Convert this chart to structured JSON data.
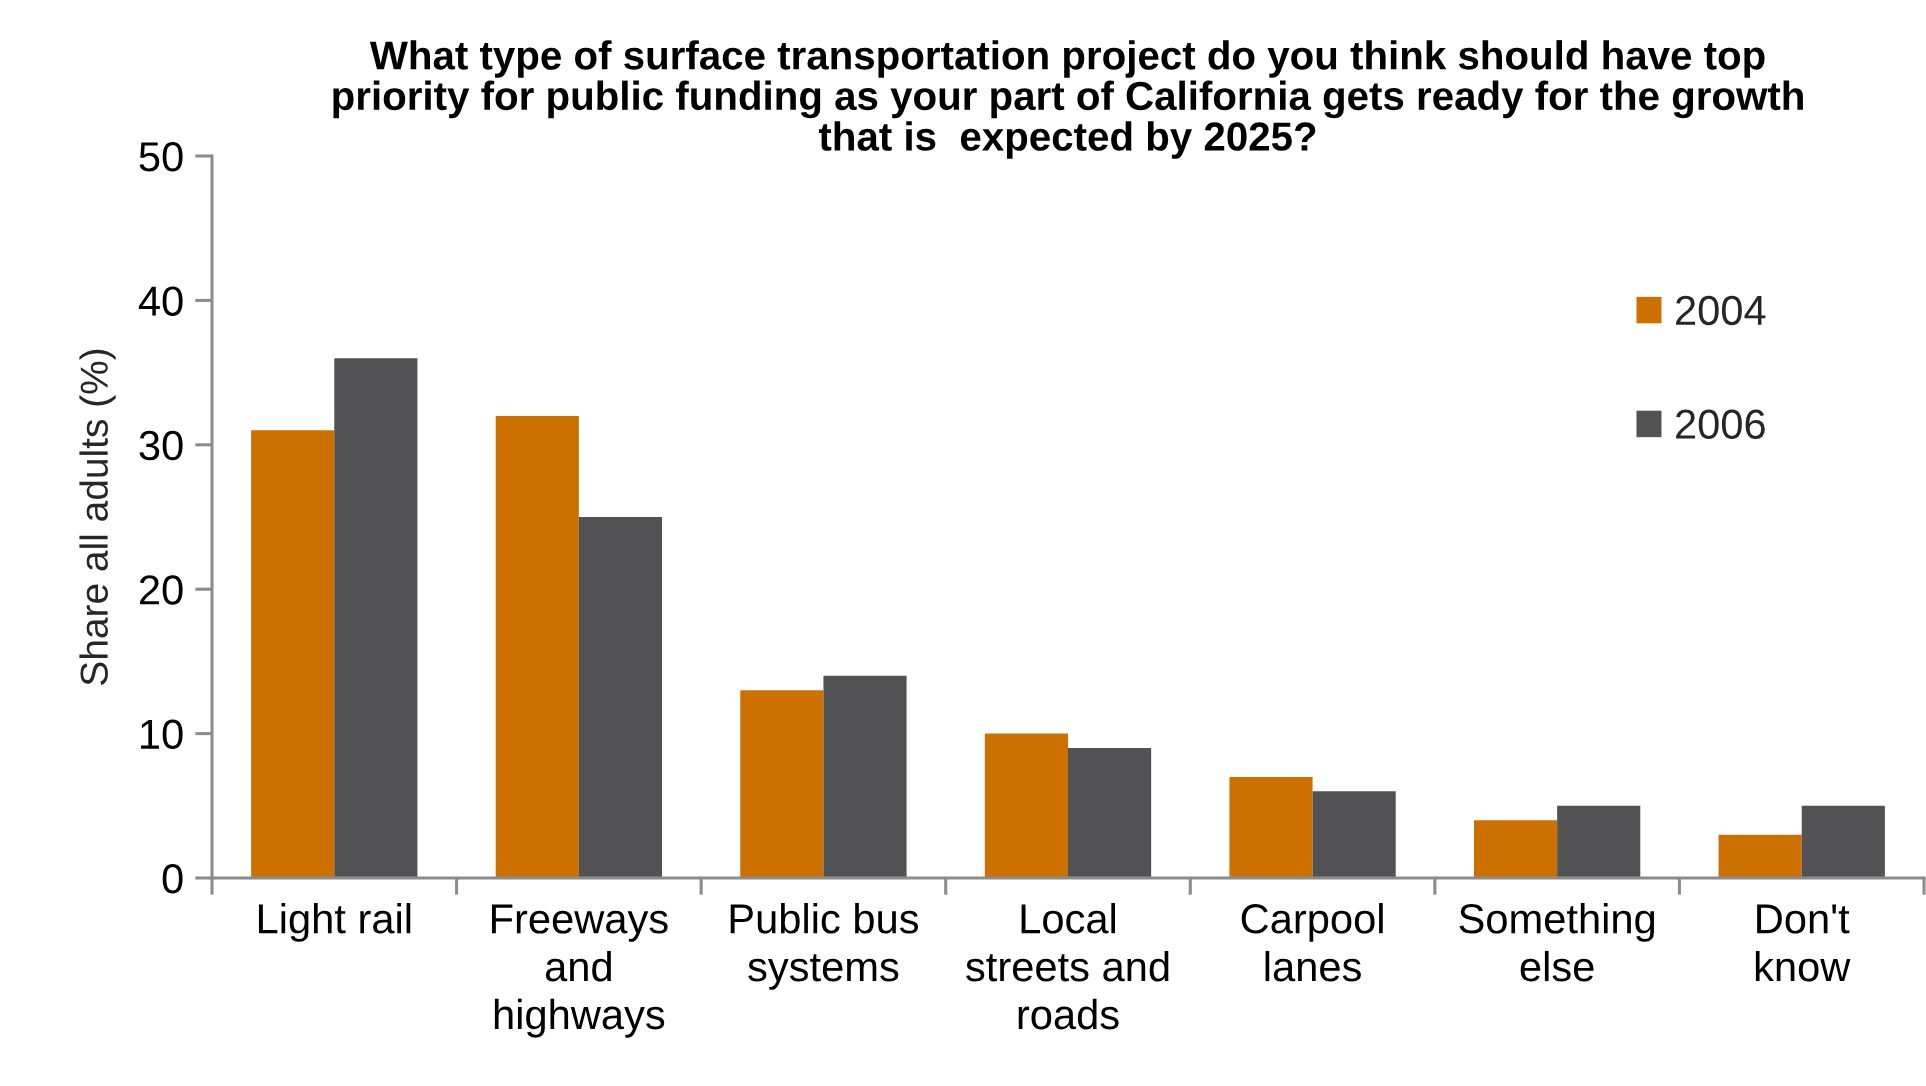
{
  "chart_data": {
    "type": "bar",
    "title": "What type of surface transportation project do you think should have top\npriority for public funding as your part of California gets ready for the growth\nthat is  expected by 2025?",
    "ylabel": "Share all adults (%)",
    "categories": [
      "Light rail",
      "Freeways\nand\nhighways",
      "Public bus\nsystems",
      "Local\nstreets and\nroads",
      "Carpool\nlanes",
      "Something\nelse",
      "Don't\nknow"
    ],
    "series": [
      {
        "name": "2004",
        "color": "#cc7000",
        "values": [
          31,
          32,
          13,
          10,
          7,
          4,
          3
        ]
      },
      {
        "name": "2006",
        "color": "#525254",
        "values": [
          36,
          25,
          14,
          9,
          6,
          5,
          5
        ]
      }
    ],
    "ylim": [
      0,
      50
    ],
    "yticks": [
      0,
      10,
      20,
      30,
      40,
      50
    ],
    "legend": "top right",
    "grid": false
  }
}
